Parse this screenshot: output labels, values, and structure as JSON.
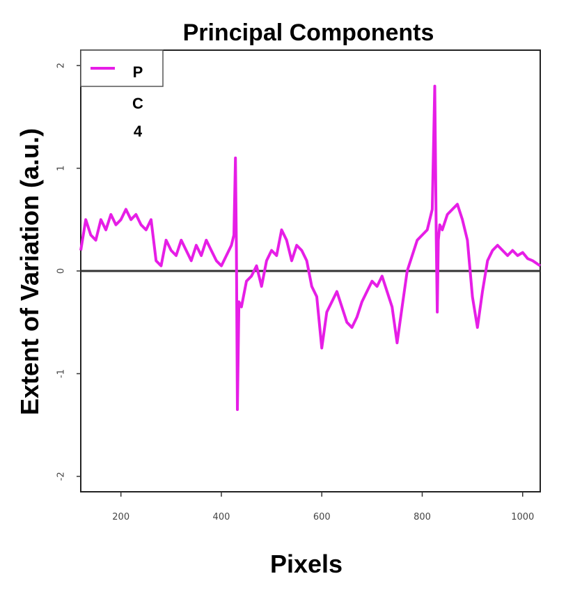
{
  "chart_data": {
    "type": "line",
    "title": "Principal Components",
    "xlabel": "Pixels",
    "ylabel": "Extent of Variation (a.u.)",
    "xlim": [
      120,
      1035
    ],
    "ylim": [
      -2.15,
      2.15
    ],
    "x_ticks": [
      200,
      400,
      600,
      800,
      1000
    ],
    "y_ticks": [
      -2,
      -1,
      0,
      1,
      2
    ],
    "x_tick_labels": [
      "200",
      "400",
      "600",
      "800",
      "1000"
    ],
    "y_tick_labels": [
      "-2",
      "-1",
      "0",
      "1",
      "2"
    ],
    "reference_line_y": 0,
    "legend": {
      "placement": "top-left",
      "entries": [
        "P",
        "C",
        "4"
      ]
    },
    "series": [
      {
        "name": "PC4",
        "color": "#e61ee6",
        "x": [
          120,
          130,
          140,
          150,
          160,
          170,
          180,
          190,
          200,
          210,
          220,
          230,
          240,
          250,
          260,
          270,
          280,
          290,
          300,
          310,
          320,
          330,
          340,
          350,
          360,
          370,
          380,
          390,
          400,
          410,
          420,
          425,
          428,
          430,
          432,
          435,
          440,
          450,
          460,
          470,
          480,
          490,
          500,
          510,
          520,
          530,
          540,
          550,
          560,
          570,
          580,
          590,
          600,
          610,
          620,
          630,
          640,
          650,
          660,
          670,
          680,
          690,
          700,
          710,
          720,
          730,
          740,
          750,
          760,
          770,
          780,
          790,
          800,
          810,
          820,
          825,
          828,
          830,
          832,
          835,
          840,
          850,
          860,
          870,
          880,
          890,
          900,
          910,
          920,
          930,
          940,
          950,
          960,
          970,
          980,
          990,
          1000,
          1010,
          1020,
          1035
        ],
        "values": [
          0.2,
          0.5,
          0.35,
          0.3,
          0.5,
          0.4,
          0.55,
          0.45,
          0.5,
          0.6,
          0.5,
          0.55,
          0.45,
          0.4,
          0.5,
          0.1,
          0.05,
          0.3,
          0.2,
          0.15,
          0.3,
          0.2,
          0.1,
          0.25,
          0.15,
          0.3,
          0.2,
          0.1,
          0.05,
          0.15,
          0.25,
          0.35,
          1.1,
          0.2,
          -1.35,
          -0.3,
          -0.35,
          -0.1,
          -0.05,
          0.05,
          -0.15,
          0.1,
          0.2,
          0.15,
          0.4,
          0.3,
          0.1,
          0.25,
          0.2,
          0.1,
          -0.15,
          -0.25,
          -0.75,
          -0.4,
          -0.3,
          -0.2,
          -0.35,
          -0.5,
          -0.55,
          -0.45,
          -0.3,
          -0.2,
          -0.1,
          -0.15,
          -0.05,
          -0.2,
          -0.35,
          -0.7,
          -0.35,
          0.0,
          0.15,
          0.3,
          0.35,
          0.4,
          0.6,
          1.8,
          0.3,
          -0.4,
          0.3,
          0.45,
          0.4,
          0.55,
          0.6,
          0.65,
          0.5,
          0.3,
          -0.25,
          -0.55,
          -0.2,
          0.1,
          0.2,
          0.25,
          0.2,
          0.15,
          0.2,
          0.15,
          0.18,
          0.12,
          0.1,
          0.05
        ]
      }
    ]
  }
}
